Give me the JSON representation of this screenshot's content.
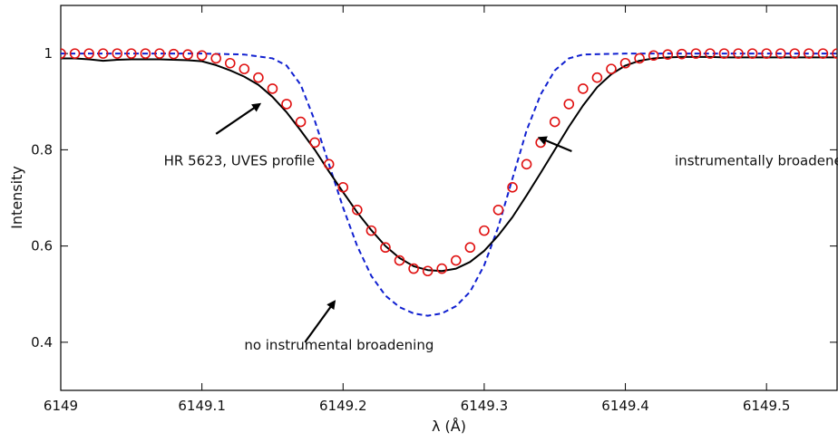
{
  "chart_data": {
    "type": "line",
    "xlabel": "λ (Å)",
    "ylabel": "Intensity",
    "xlim": [
      6149.0,
      6149.55
    ],
    "ylim": [
      0.3,
      1.1
    ],
    "x_ticks": [
      6149.0,
      6149.1,
      6149.2,
      6149.3,
      6149.4,
      6149.5
    ],
    "x_tick_labels": [
      "6149",
      "6149.1",
      "6149.2",
      "6149.3",
      "6149.4",
      "6149.5"
    ],
    "y_ticks": [
      0.4,
      0.6,
      0.8,
      1.0
    ],
    "y_tick_labels": [
      "0.4",
      "0.6",
      "0.8",
      "1"
    ],
    "grid": false,
    "colors": {
      "observed": "#000000",
      "no_broadening": "#1020d0",
      "broadened_markers": "#e01010"
    },
    "series": [
      {
        "style": "solid-line",
        "x": [
          6149.0,
          6149.01,
          6149.02,
          6149.03,
          6149.04,
          6149.05,
          6149.06,
          6149.07,
          6149.08,
          6149.09,
          6149.1,
          6149.11,
          6149.12,
          6149.13,
          6149.14,
          6149.15,
          6149.16,
          6149.17,
          6149.18,
          6149.19,
          6149.2,
          6149.21,
          6149.22,
          6149.23,
          6149.24,
          6149.25,
          6149.26,
          6149.27,
          6149.28,
          6149.29,
          6149.3,
          6149.31,
          6149.32,
          6149.33,
          6149.34,
          6149.35,
          6149.36,
          6149.37,
          6149.38,
          6149.39,
          6149.4,
          6149.41,
          6149.42,
          6149.43,
          6149.44,
          6149.45,
          6149.46,
          6149.47,
          6149.48,
          6149.49,
          6149.5,
          6149.51,
          6149.52,
          6149.53,
          6149.54,
          6149.55
        ],
        "y": [
          0.99,
          0.99,
          0.988,
          0.985,
          0.987,
          0.988,
          0.988,
          0.988,
          0.987,
          0.986,
          0.984,
          0.976,
          0.965,
          0.952,
          0.935,
          0.91,
          0.878,
          0.84,
          0.8,
          0.755,
          0.712,
          0.67,
          0.633,
          0.6,
          0.575,
          0.558,
          0.55,
          0.548,
          0.553,
          0.567,
          0.59,
          0.622,
          0.66,
          0.705,
          0.752,
          0.8,
          0.848,
          0.892,
          0.93,
          0.957,
          0.975,
          0.985,
          0.99,
          0.992,
          0.993,
          0.993,
          0.993,
          0.992,
          0.992,
          0.992,
          0.992,
          0.992,
          0.992,
          0.992,
          0.992,
          0.992
        ]
      },
      {
        "style": "dashed-line",
        "x": [
          6149.0,
          6149.1,
          6149.13,
          6149.15,
          6149.16,
          6149.17,
          6149.18,
          6149.19,
          6149.2,
          6149.21,
          6149.22,
          6149.23,
          6149.24,
          6149.25,
          6149.26,
          6149.27,
          6149.28,
          6149.29,
          6149.3,
          6149.31,
          6149.32,
          6149.33,
          6149.34,
          6149.35,
          6149.36,
          6149.37,
          6149.4,
          6149.55
        ],
        "y": [
          1.0,
          1.0,
          0.998,
          0.99,
          0.975,
          0.935,
          0.86,
          0.77,
          0.68,
          0.6,
          0.538,
          0.497,
          0.473,
          0.46,
          0.455,
          0.46,
          0.475,
          0.505,
          0.56,
          0.64,
          0.74,
          0.84,
          0.915,
          0.965,
          0.99,
          0.998,
          1.0,
          1.0
        ]
      },
      {
        "style": "open-circle-markers",
        "x": [
          6149.0,
          6149.01,
          6149.02,
          6149.03,
          6149.04,
          6149.05,
          6149.06,
          6149.07,
          6149.08,
          6149.09,
          6149.1,
          6149.11,
          6149.12,
          6149.13,
          6149.14,
          6149.15,
          6149.16,
          6149.17,
          6149.18,
          6149.19,
          6149.2,
          6149.21,
          6149.22,
          6149.23,
          6149.24,
          6149.25,
          6149.26,
          6149.27,
          6149.28,
          6149.29,
          6149.3,
          6149.31,
          6149.32,
          6149.33,
          6149.34,
          6149.35,
          6149.36,
          6149.37,
          6149.38,
          6149.39,
          6149.4,
          6149.41,
          6149.42,
          6149.43,
          6149.44,
          6149.45,
          6149.46,
          6149.47,
          6149.48,
          6149.49,
          6149.5,
          6149.51,
          6149.52,
          6149.53,
          6149.54,
          6149.55
        ],
        "y": [
          1.0,
          1.0,
          1.0,
          1.0,
          1.0,
          1.0,
          1.0,
          1.0,
          0.999,
          0.998,
          0.996,
          0.99,
          0.98,
          0.968,
          0.95,
          0.927,
          0.895,
          0.858,
          0.815,
          0.77,
          0.722,
          0.675,
          0.632,
          0.597,
          0.57,
          0.553,
          0.548,
          0.553,
          0.57,
          0.597,
          0.632,
          0.675,
          0.722,
          0.77,
          0.815,
          0.858,
          0.895,
          0.927,
          0.95,
          0.968,
          0.98,
          0.99,
          0.996,
          0.998,
          0.999,
          1.0,
          1.0,
          1.0,
          1.0,
          1.0,
          1.0,
          1.0,
          1.0,
          1.0,
          1.0,
          1.0
        ]
      }
    ],
    "annotations": [
      {
        "text": "HR 5623, UVES profile",
        "x": 6149.073,
        "y": 0.768,
        "arrow_from": [
          6149.11,
          0.833
        ],
        "arrow_to": [
          6149.141,
          0.895
        ]
      },
      {
        "text": "instrumentally broadened profile",
        "x": 6149.435,
        "y": 0.768,
        "arrow_from": [
          6149.362,
          0.797
        ],
        "arrow_to": [
          6149.339,
          0.825
        ]
      },
      {
        "text": "no instrumental broadening",
        "x": 6149.13,
        "y": 0.385,
        "arrow_from": [
          6149.173,
          0.4
        ],
        "arrow_to": [
          6149.194,
          0.485
        ]
      }
    ]
  }
}
